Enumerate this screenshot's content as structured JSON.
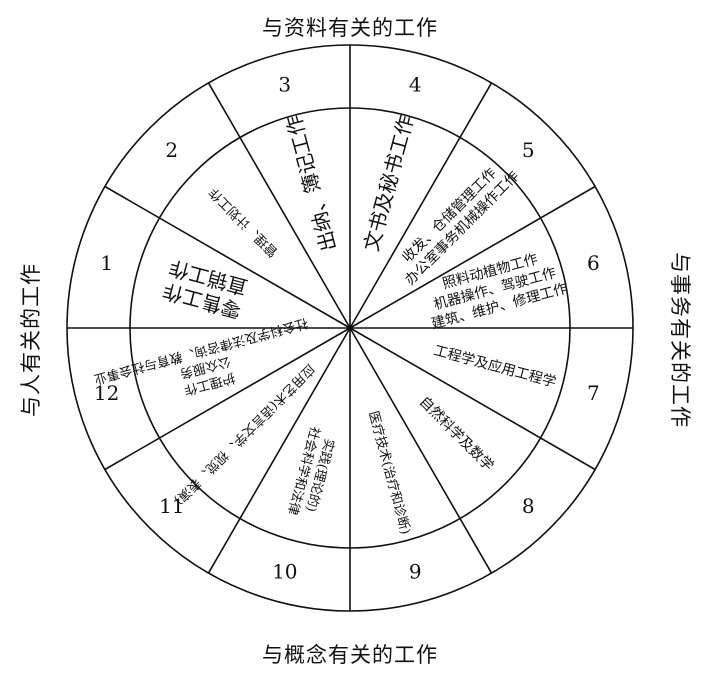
{
  "title_top": "与资料有关的工作",
  "title_right": "与事务有关的工作",
  "title_bottom": "与概念有关的工作",
  "title_left": "与人有关的工作",
  "sectors": [
    {
      "number": "1",
      "lines": [
        "直销工作",
        "零售工作"
      ]
    },
    {
      "number": "2",
      "lines": [
        "管理、计划工作"
      ]
    },
    {
      "number": "3",
      "lines": [
        "出纳、簿记工作"
      ]
    },
    {
      "number": "4",
      "lines": [
        "文书及秘书工作"
      ]
    },
    {
      "number": "5",
      "lines": [
        "办公室事务机械操作工作",
        "收发、仓储管理工作"
      ]
    },
    {
      "number": "6",
      "lines": [
        "建筑、维护、修理工作",
        "机器操作、驾驶工作",
        "照料动植物工作"
      ]
    },
    {
      "number": "7",
      "lines": [
        "工程学及应用工程学"
      ]
    },
    {
      "number": "8",
      "lines": [
        "自然科学及数学"
      ]
    },
    {
      "number": "9",
      "lines": [
        "医疗技术(治疗和诊断)"
      ]
    },
    {
      "number": "10",
      "lines": [
        "社会科学和法律",
        "实践(理论的)"
      ]
    },
    {
      "number": "11",
      "lines": [
        "应用艺术(语言文学、视觉、表演)"
      ]
    },
    {
      "number": "12",
      "lines": [
        "社会科学及法律咨询、教育与社会事业",
        "公众服务",
        "护理工作"
      ]
    }
  ]
}
